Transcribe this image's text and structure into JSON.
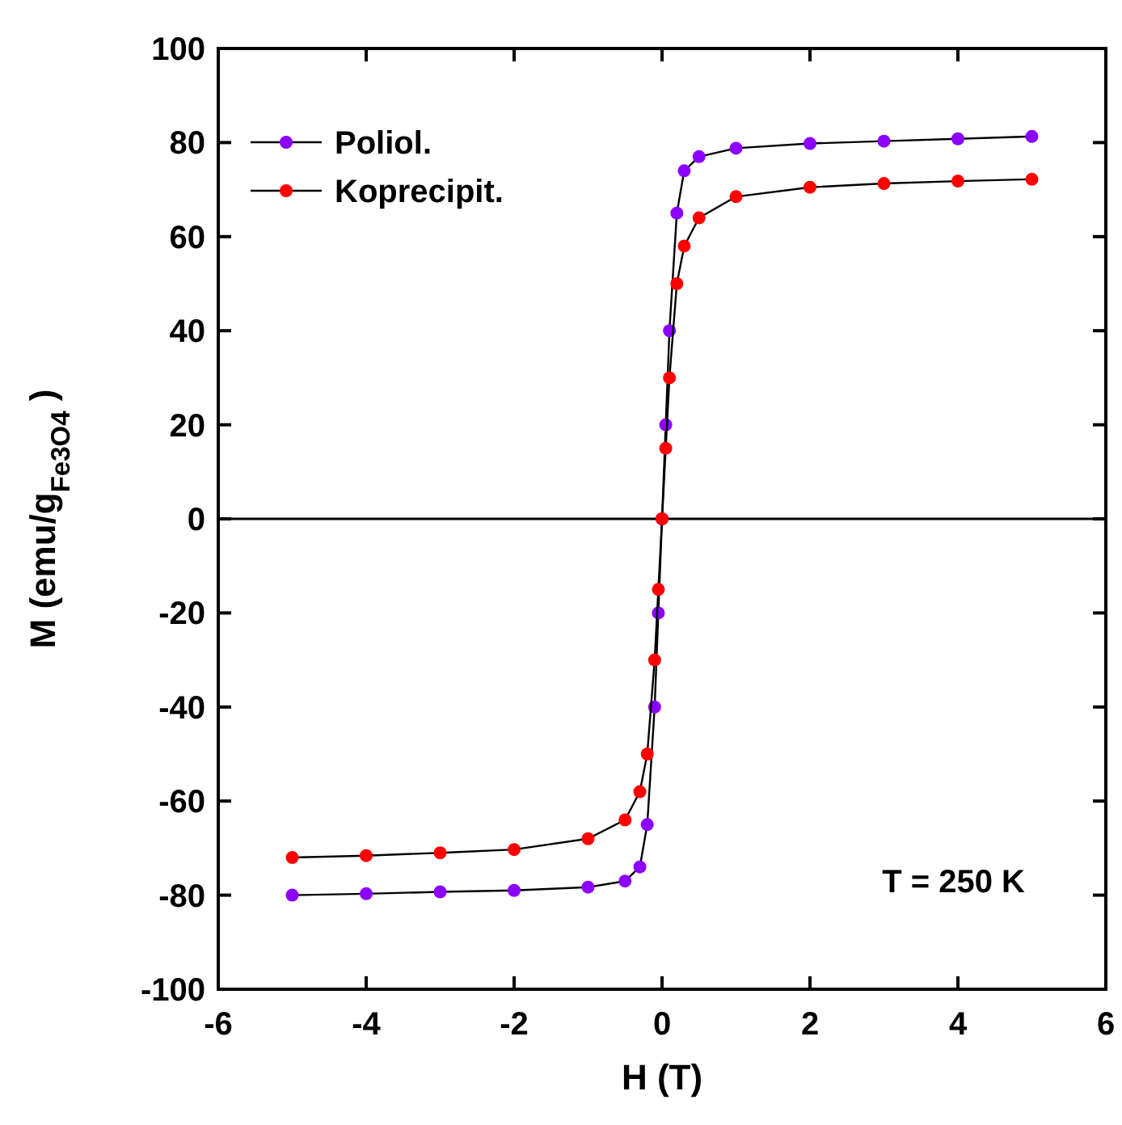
{
  "chart_data": {
    "type": "line",
    "xlabel": "H (T)",
    "ylabel": "M (emu/g$_{Fe3O4}$)",
    "xlim": [
      -6,
      6
    ],
    "xticks": [
      -6,
      -4,
      -2,
      0,
      2,
      4,
      6
    ],
    "ylim": [
      -100,
      100
    ],
    "yticks": [
      -100,
      -80,
      -60,
      -40,
      -20,
      0,
      20,
      40,
      60,
      80,
      100
    ],
    "x": [
      -5,
      -4,
      -3,
      -2,
      -1,
      -0.5,
      -0.3,
      -0.2,
      -0.1,
      -0.05,
      0,
      0.05,
      0.1,
      0.2,
      0.3,
      0.5,
      1,
      2,
      3,
      4,
      5
    ],
    "series": [
      {
        "name": "Poliol.",
        "color": "#8b00ff",
        "values": [
          -80,
          -79.7,
          -79.3,
          -79,
          -78.3,
          -77,
          -74,
          -65,
          -40,
          -20,
          0,
          20,
          40,
          65,
          74,
          77,
          78.8,
          79.8,
          80.3,
          80.8,
          81.3
        ]
      },
      {
        "name": "Koprecipit.",
        "color": "#ff0000",
        "values": [
          -72,
          -71.6,
          -71,
          -70.3,
          -68,
          -64,
          -58,
          -50,
          -30,
          -15,
          0,
          15,
          30,
          50,
          58,
          64,
          68.5,
          70.5,
          71.3,
          71.8,
          72.2
        ]
      }
    ],
    "ref_lines": [
      {
        "axis": "y",
        "value": 0,
        "color": "#000000"
      }
    ],
    "annotations": [
      "T = 250 K"
    ],
    "marker": "circle",
    "line_style": "solid",
    "legend": "top left",
    "grid": false
  }
}
